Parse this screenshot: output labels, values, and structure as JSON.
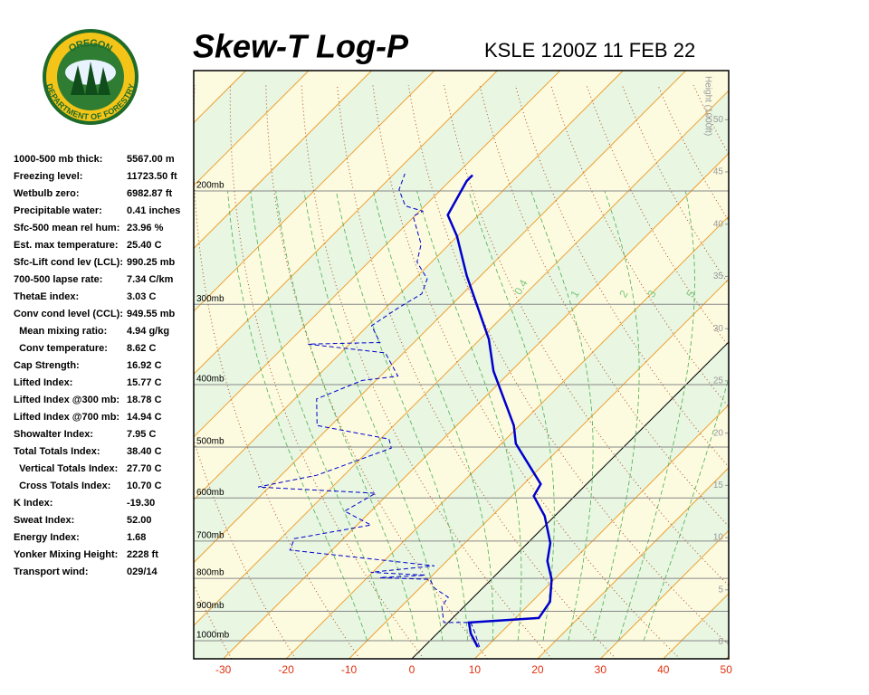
{
  "logo": {
    "top": "OREGON",
    "bottom": "DEPARTMENT OF FORESTRY"
  },
  "indices": [
    [
      "1000-500 mb thick:",
      "5567.00 m"
    ],
    [
      "Freezing level:",
      "11723.50 ft"
    ],
    [
      "Wetbulb zero:",
      "6982.87 ft"
    ],
    [
      "Precipitable water:",
      "0.41 inches"
    ],
    [
      "Sfc-500 mean rel hum:",
      "23.96 %"
    ],
    [
      "Est. max temperature:",
      "25.40 C"
    ],
    [
      "Sfc-Lift cond lev (LCL):",
      "990.25 mb"
    ],
    [
      "700-500 lapse rate:",
      "7.34 C/km"
    ],
    [
      "ThetaE index:",
      "3.03 C"
    ],
    [
      "Conv cond level (CCL):",
      "949.55 mb"
    ],
    [
      "  Mean mixing ratio:",
      "4.94 g/kg"
    ],
    [
      "  Conv temperature:",
      "8.62 C"
    ],
    [
      "Cap Strength:",
      "16.92 C"
    ],
    [
      "Lifted Index:",
      "15.77 C"
    ],
    [
      "Lifted Index @300 mb:",
      "18.78 C"
    ],
    [
      "Lifted Index @700 mb:",
      "14.94 C"
    ],
    [
      "Showalter Index:",
      "7.95 C"
    ],
    [
      "Total Totals Index:",
      "38.40 C"
    ],
    [
      "  Vertical Totals Index:",
      "27.70 C"
    ],
    [
      "  Cross Totals Index:",
      "10.70 C"
    ],
    [
      "K Index:",
      "-19.30"
    ],
    [
      "Sweat Index:",
      "52.00"
    ],
    [
      "Energy Index:",
      "1.68"
    ],
    [
      "Yonker Mixing Height:",
      "2228 ft"
    ],
    [
      "Transport wind:",
      "029/14"
    ]
  ],
  "chart_data": {
    "type": "skewt",
    "title": "Skew-T Log-P",
    "subtitle": "KSLE 1200Z 11 FEB 22",
    "xlim": [
      -34.7,
      50.4
    ],
    "xticks": [
      -30,
      -20,
      -10,
      0,
      10,
      20,
      30,
      40,
      50
    ],
    "ylim": [
      1067,
      130
    ],
    "log_y": true,
    "yticks": [
      {
        "value": 200,
        "label": "200mb"
      },
      {
        "value": 300,
        "label": "300mb"
      },
      {
        "value": 400,
        "label": "400mb"
      },
      {
        "value": 500,
        "label": "500mb"
      },
      {
        "value": 600,
        "label": "600mb"
      },
      {
        "value": 700,
        "label": "700mb"
      },
      {
        "value": 800,
        "label": "800mb"
      },
      {
        "value": 900,
        "label": "900mb"
      },
      {
        "value": 1000,
        "label": "1000mb"
      }
    ],
    "height_label": "Height (1000ft)",
    "hlim": [
      -1.6,
      54.7
    ],
    "hticks": [
      0,
      5,
      10,
      15,
      20,
      25,
      30,
      35,
      40,
      45,
      50
    ],
    "mixing_ratio_labels": [
      0.4,
      1,
      2,
      3,
      5
    ],
    "series": [
      {
        "color": "#0000cc",
        "dashed": false,
        "pressure": [
          1023,
          974,
          937,
          922,
          870,
          803,
          752,
          705,
          640,
          596,
          571,
          494,
          463,
          381,
          340,
          271,
          235,
          218,
          200,
          193,
          189
        ],
        "values": [
          8.6,
          5.3,
          3.3,
          13.7,
          12.9,
          9.6,
          6.0,
          3.6,
          -1.6,
          -6.5,
          -7.3,
          -17.7,
          -20.9,
          -32.8,
          -38.6,
          -52.2,
          -60.1,
          -64.9,
          -66.6,
          -67.3,
          -67.3
        ]
      },
      {
        "color": "#0000cc",
        "dashed": true,
        "pressure": [
          1023,
          974,
          937,
          937,
          884,
          856,
          829,
          803,
          798,
          791,
          783,
          765,
          723,
          694,
          661,
          629,
          590,
          577,
          553,
          502,
          486,
          463,
          421,
          394,
          388,
          357,
          346,
          344,
          324,
          304,
          289,
          274,
          258,
          242,
          219,
          215,
          211,
          199,
          188
        ],
        "values": [
          8.9,
          6.0,
          3.6,
          -0.7,
          -3.6,
          -4.0,
          -7.6,
          -9.8,
          -18.0,
          -11.2,
          -20.3,
          -11.2,
          -36.7,
          -37.8,
          -27.8,
          -34.2,
          -32.1,
          -51.8,
          -44.3,
          -36.8,
          -38.6,
          -52.2,
          -56.5,
          -52.2,
          -47.2,
          -52.9,
          -66.6,
          -55.4,
          -59.4,
          -58.0,
          -56.5,
          -58.0,
          -62.3,
          -64.5,
          -70.2,
          -69.5,
          -73.1,
          -76.7,
          -78.3
        ]
      }
    ]
  }
}
